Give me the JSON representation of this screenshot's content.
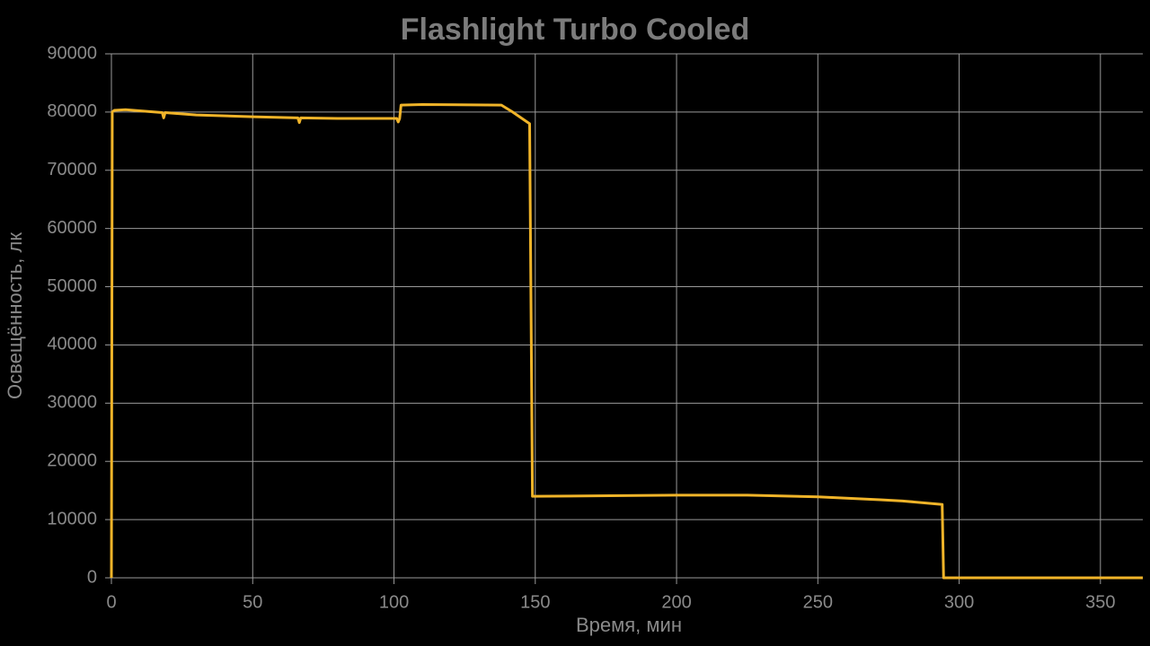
{
  "chart_data": {
    "type": "line",
    "title": "Flashlight Turbo Cooled",
    "x_label": "Время, мин",
    "y_label": "Освещённость, лк",
    "x": [
      0,
      0.3,
      1,
      5,
      18,
      18.5,
      19,
      30,
      50,
      66,
      66.5,
      67,
      80,
      101,
      101.5,
      102,
      102.5,
      110,
      138,
      142,
      148,
      149,
      150,
      200,
      225,
      250,
      272,
      280,
      294,
      294.5,
      365
    ],
    "values": [
      0,
      80000,
      80300,
      80400,
      79900,
      79000,
      79900,
      79500,
      79200,
      79000,
      78200,
      79000,
      78900,
      78900,
      78300,
      78900,
      81200,
      81300,
      81200,
      80000,
      78000,
      14000,
      14000,
      14200,
      14200,
      13900,
      13400,
      13200,
      12600,
      0,
      0
    ],
    "color": "#f0b429",
    "xlim": [
      0,
      365
    ],
    "xticks": [
      0,
      50,
      100,
      150,
      200,
      250,
      300,
      350
    ],
    "ylim": [
      0,
      90000
    ],
    "yticks": [
      0,
      10000,
      20000,
      30000,
      40000,
      50000,
      60000,
      70000,
      80000,
      90000
    ],
    "grid": true
  }
}
